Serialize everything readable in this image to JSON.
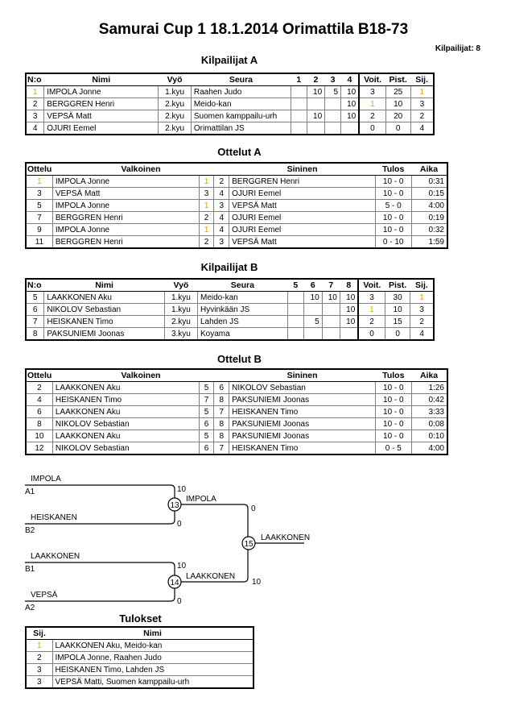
{
  "title": "Samurai Cup 1  18.1.2014  Orimattila   B18-73",
  "participants_count": "Kilpailijat: 8",
  "pool_a": {
    "heading": "Kilpailijat A",
    "headers": [
      "N:o",
      "Nimi",
      "Vyö",
      "Seura",
      "1",
      "2",
      "3",
      "4",
      "Voit.",
      "Pist.",
      "Sij."
    ],
    "rows": [
      [
        "1",
        "IMPOLA Jonne",
        "1.kyu",
        "Raahen Judo",
        "",
        "10",
        "5",
        "10",
        "3",
        "25",
        "1"
      ],
      [
        "2",
        "BERGGREN Henri",
        "2.kyu",
        "Meido-kan",
        "",
        "",
        "",
        "10",
        "1",
        "10",
        "3"
      ],
      [
        "3",
        "VEPSÄ Matt",
        "2.kyu",
        "Suomen kamppailu-urh",
        "",
        "10",
        "",
        "10",
        "2",
        "20",
        "2"
      ],
      [
        "4",
        "OJURI Eemel",
        "2.kyu",
        "Orimattilan JS",
        "",
        "",
        "",
        "",
        "0",
        "0",
        "4"
      ]
    ]
  },
  "matches_a": {
    "heading": "Ottelut A",
    "headers": [
      "Ottelu",
      "Valkoinen",
      "Sininen",
      "Tulos",
      "Aika"
    ],
    "rows": [
      [
        "1",
        "IMPOLA Jonne",
        "1",
        "2",
        "BERGGREN Henri",
        "10 - 0",
        "0:31"
      ],
      [
        "3",
        "VEPSÄ Matt",
        "3",
        "4",
        "OJURI Eemel",
        "10 - 0",
        "0:15"
      ],
      [
        "5",
        "IMPOLA Jonne",
        "1",
        "3",
        "VEPSÄ Matt",
        "5 - 0",
        "4:00"
      ],
      [
        "7",
        "BERGGREN Henri",
        "2",
        "4",
        "OJURI Eemel",
        "10 - 0",
        "0:19"
      ],
      [
        "9",
        "IMPOLA Jonne",
        "1",
        "4",
        "OJURI Eemel",
        "10 - 0",
        "0:32"
      ],
      [
        "11",
        "BERGGREN Henri",
        "2",
        "3",
        "VEPSÄ Matt",
        "0 - 10",
        "1:59"
      ]
    ]
  },
  "pool_b": {
    "heading": "Kilpailijat B",
    "headers": [
      "N:o",
      "Nimi",
      "Vyö",
      "Seura",
      "5",
      "6",
      "7",
      "8",
      "Voit.",
      "Pist.",
      "Sij."
    ],
    "rows": [
      [
        "5",
        "LAAKKONEN Aku",
        "1.kyu",
        "Meido-kan",
        "",
        "10",
        "10",
        "10",
        "3",
        "30",
        "1"
      ],
      [
        "6",
        "NIKOLOV Sebastian",
        "1.kyu",
        "Hyvinkään JS",
        "",
        "",
        "",
        "10",
        "1",
        "10",
        "3"
      ],
      [
        "7",
        "HEISKANEN Timo",
        "2.kyu",
        "Lahden JS",
        "",
        "5",
        "",
        "10",
        "2",
        "15",
        "2"
      ],
      [
        "8",
        "PAKSUNIEMI Joonas",
        "3.kyu",
        "Koyama",
        "",
        "",
        "",
        "",
        "0",
        "0",
        "4"
      ]
    ]
  },
  "matches_b": {
    "heading": "Ottelut B",
    "headers": [
      "Ottelu",
      "Valkoinen",
      "Sininen",
      "Tulos",
      "Aika"
    ],
    "rows": [
      [
        "2",
        "LAAKKONEN Aku",
        "5",
        "6",
        "NIKOLOV Sebastian",
        "10 - 0",
        "1:26"
      ],
      [
        "4",
        "HEISKANEN Timo",
        "7",
        "8",
        "PAKSUNIEMI Joonas",
        "10 - 0",
        "0:42"
      ],
      [
        "6",
        "LAAKKONEN Aku",
        "5",
        "7",
        "HEISKANEN Timo",
        "10 - 0",
        "3:33"
      ],
      [
        "8",
        "NIKOLOV Sebastian",
        "6",
        "8",
        "PAKSUNIEMI Joonas",
        "10 - 0",
        "0:08"
      ],
      [
        "10",
        "LAAKKONEN Aku",
        "5",
        "8",
        "PAKSUNIEMI Joonas",
        "10 - 0",
        "0:10"
      ],
      [
        "12",
        "NIKOLOV Sebastian",
        "6",
        "7",
        "HEISKANEN Timo",
        "0 - 5",
        "4:00"
      ]
    ]
  },
  "bracket": {
    "semi1": {
      "match": "13",
      "top_name": "IMPOLA",
      "top_seed": "A1",
      "top_score": "10",
      "bottom_name": "HEISKANEN",
      "bottom_seed": "B2",
      "bottom_score": "0",
      "winner": "IMPOLA",
      "final_score": "0"
    },
    "semi2": {
      "match": "14",
      "top_name": "LAAKKONEN",
      "top_seed": "B1",
      "top_score": "10",
      "bottom_name": "VEPSÄ",
      "bottom_seed": "A2",
      "bottom_score": "0",
      "winner": "LAAKKONEN",
      "final_score": "10"
    },
    "final": {
      "match": "15",
      "winner": "LAAKKONEN"
    }
  },
  "results": {
    "heading": "Tulokset",
    "headers": [
      "Sij.",
      "Nimi"
    ],
    "rows": [
      [
        "1",
        "LAAKKONEN Aku, Meido-kan"
      ],
      [
        "2",
        "IMPOLA Jonne, Raahen Judo"
      ],
      [
        "3",
        "HEISKANEN Timo, Lahden JS"
      ],
      [
        "3",
        "VEPSÄ Matti, Suomen kamppailu-urh"
      ]
    ]
  },
  "highlight_color": "#e0a800"
}
